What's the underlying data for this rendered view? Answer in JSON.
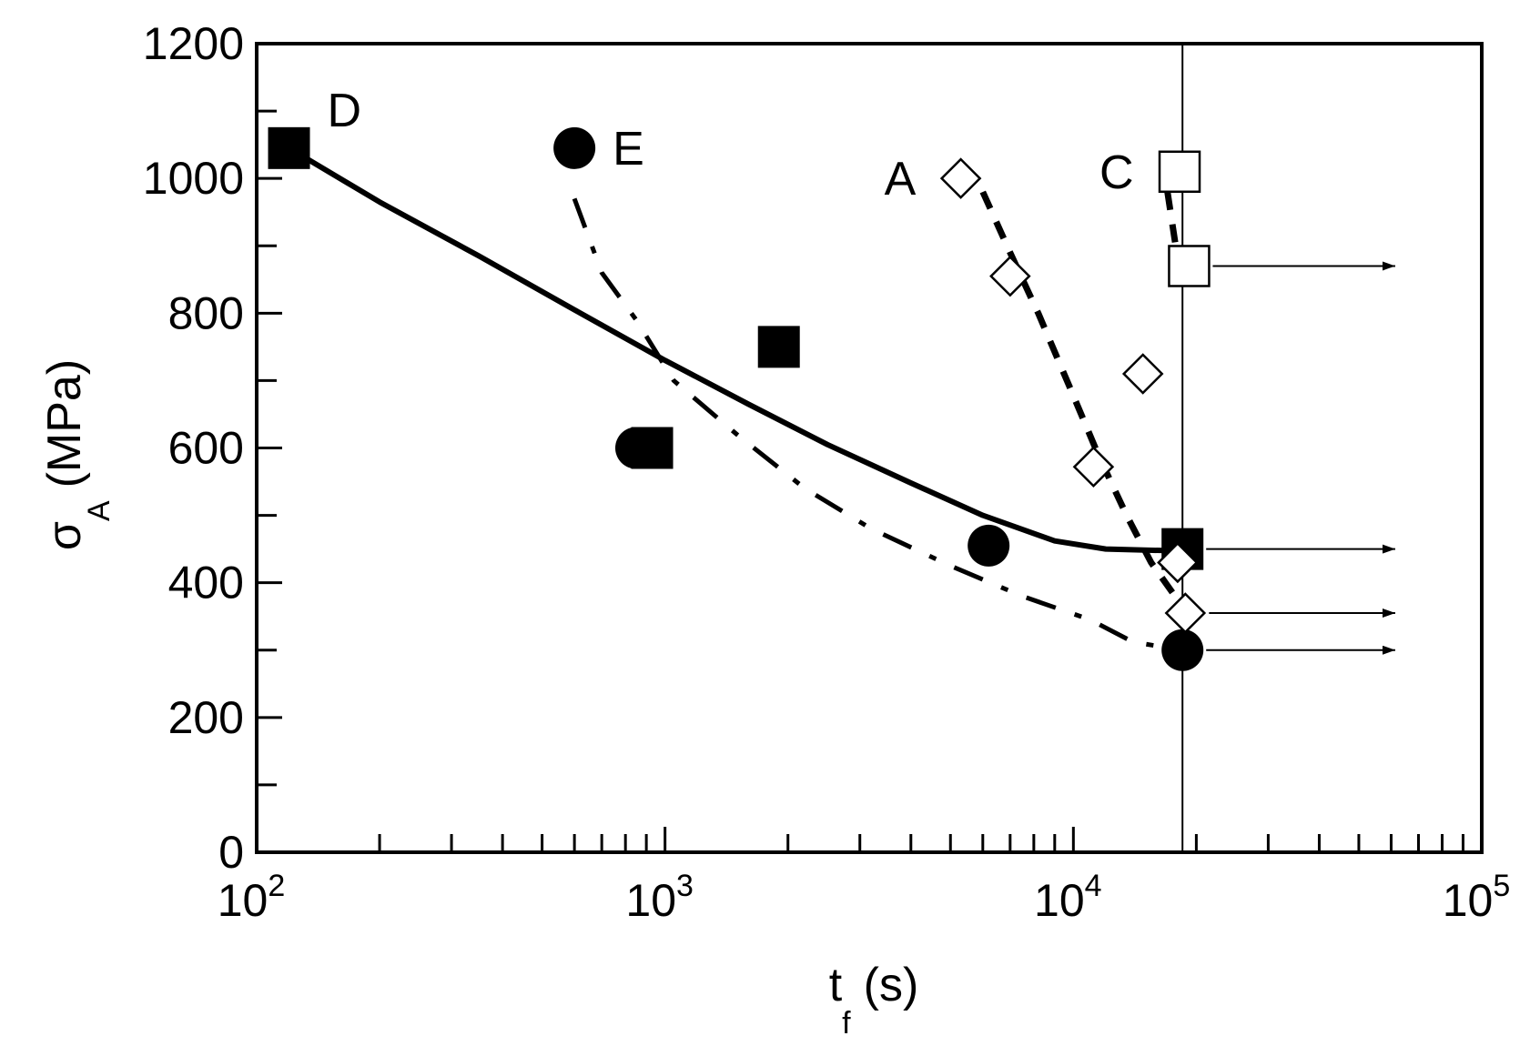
{
  "chart_data": {
    "type": "scatter",
    "title": "",
    "xlabel": {
      "main": "t",
      "sub": "f",
      "unit": "(s)"
    },
    "ylabel": {
      "main": "σ",
      "sub": "A",
      "unit": "(MPa)"
    },
    "xscale": "log",
    "xlim": [
      100,
      100000
    ],
    "ylim": [
      0,
      1200
    ],
    "grid": false,
    "legend": "none",
    "colors": {
      "ink": "#000000",
      "background": "#ffffff"
    },
    "x_ticks": [
      {
        "base": "10",
        "exp": "2",
        "value": 100
      },
      {
        "base": "10",
        "exp": "3",
        "value": 1000
      },
      {
        "base": "10",
        "exp": "4",
        "value": 10000
      },
      {
        "base": "10",
        "exp": "5",
        "value": 100000
      }
    ],
    "y_ticks": [
      {
        "label": "0",
        "value": 0
      },
      {
        "label": "200",
        "value": 200
      },
      {
        "label": "400",
        "value": 400
      },
      {
        "label": "600",
        "value": 600
      },
      {
        "label": "800",
        "value": 800
      },
      {
        "label": "1000",
        "value": 1000
      },
      {
        "label": "1200",
        "value": 1200
      }
    ],
    "reference_line": {
      "x": 18500
    },
    "series": [
      {
        "name": "D",
        "marker": "square-filled",
        "line": "solid",
        "points": [
          {
            "x": 120,
            "y": 1045
          },
          {
            "x": 1900,
            "y": 750
          },
          {
            "x": 930,
            "y": 600
          },
          {
            "x": 18500,
            "y": 450,
            "runout": true
          }
        ],
        "curve": [
          [
            120,
            1045
          ],
          [
            200,
            965
          ],
          [
            350,
            885
          ],
          [
            600,
            805
          ],
          [
            1000,
            730
          ],
          [
            1600,
            665
          ],
          [
            2500,
            605
          ],
          [
            4000,
            548
          ],
          [
            6000,
            500
          ],
          [
            9000,
            462
          ],
          [
            12000,
            450
          ],
          [
            18500,
            447
          ]
        ]
      },
      {
        "name": "E",
        "marker": "circle-filled",
        "line": "dash-dot",
        "points": [
          {
            "x": 600,
            "y": 1045
          },
          {
            "x": 850,
            "y": 600
          },
          {
            "x": 6200,
            "y": 455
          },
          {
            "x": 18500,
            "y": 300,
            "runout": true
          }
        ],
        "curve": [
          [
            600,
            970
          ],
          [
            700,
            860
          ],
          [
            850,
            790
          ],
          [
            1050,
            700
          ],
          [
            1500,
            620
          ],
          [
            2200,
            540
          ],
          [
            3200,
            480
          ],
          [
            5000,
            425
          ],
          [
            7500,
            380
          ],
          [
            11000,
            345
          ],
          [
            14000,
            312
          ],
          [
            18500,
            300
          ]
        ]
      },
      {
        "name": "A",
        "marker": "diamond-open",
        "line": "dashed",
        "points": [
          {
            "x": 5300,
            "y": 1000
          },
          {
            "x": 7000,
            "y": 855
          },
          {
            "x": 14800,
            "y": 710
          },
          {
            "x": 11200,
            "y": 572
          },
          {
            "x": 18000,
            "y": 430
          },
          {
            "x": 18800,
            "y": 355,
            "runout": true
          }
        ],
        "curve": [
          [
            6000,
            980
          ],
          [
            7000,
            890
          ],
          [
            8200,
            800
          ],
          [
            9800,
            690
          ],
          [
            11500,
            590
          ],
          [
            13500,
            500
          ],
          [
            15500,
            430
          ],
          [
            17500,
            385
          ]
        ]
      },
      {
        "name": "C",
        "marker": "square-open",
        "line": "dashed",
        "points": [
          {
            "x": 18200,
            "y": 1010
          },
          {
            "x": 19200,
            "y": 870,
            "runout": true
          }
        ],
        "curve": [
          [
            17000,
            980
          ],
          [
            17800,
            900
          ]
        ]
      }
    ]
  }
}
